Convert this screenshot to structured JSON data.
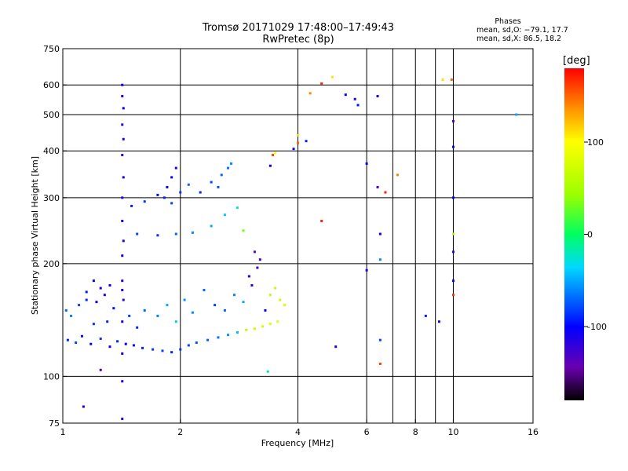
{
  "header": {
    "title": "Tromsø 20171029 17:48:00–17:49:43",
    "subtitle": "RwPretec (8p)"
  },
  "stats": {
    "heading": "Phases",
    "line_o": "mean, sd,O: −79.1, 17.7",
    "line_x": "mean, sd,X:  86.5, 18.2"
  },
  "colorbar": {
    "label": "[deg]",
    "ticks": [
      {
        "label": "100",
        "value": 100
      },
      {
        "label": "0",
        "value": 0
      },
      {
        "label": "-100",
        "value": -100
      }
    ],
    "range": [
      -180,
      180
    ]
  },
  "chart_data": {
    "type": "scatter",
    "title": "Tromsø 20171029 17:48:00–17:49:43",
    "subtitle": "RwPretec (8p)",
    "xlabel": "Frequency [MHz]",
    "ylabel": "Stationary phase Virtual Height [km]",
    "x_scale": "log",
    "y_scale": "log",
    "xlim": [
      1,
      16
    ],
    "ylim": [
      75,
      750
    ],
    "xticks": [
      {
        "label": "1",
        "value": 1
      },
      {
        "label": "2",
        "value": 2
      },
      {
        "label": "4",
        "value": 4
      },
      {
        "label": "6",
        "value": 6
      },
      {
        "label": "8",
        "value": 8
      },
      {
        "label": "10",
        "value": 10
      },
      {
        "label": "16",
        "value": 16
      }
    ],
    "yticks": [
      {
        "label": "75",
        "value": 75
      },
      {
        "label": "100",
        "value": 100
      },
      {
        "label": "200",
        "value": 200
      },
      {
        "label": "300",
        "value": 300
      },
      {
        "label": "400",
        "value": 400
      },
      {
        "label": "500",
        "value": 500
      },
      {
        "label": "600",
        "value": 600
      },
      {
        "label": "750",
        "value": 750
      }
    ],
    "vgrid": [
      2,
      4,
      6,
      7,
      8,
      9,
      10
    ],
    "hgrid": [
      100,
      200,
      300,
      400,
      500,
      600
    ],
    "grid": true,
    "color_encodes": "phase [deg]",
    "points": [
      [
        1.03,
        125,
        -90
      ],
      [
        1.08,
        123,
        -80
      ],
      [
        1.12,
        128,
        -95
      ],
      [
        1.18,
        122,
        -100
      ],
      [
        1.25,
        126,
        -85
      ],
      [
        1.32,
        120,
        -105
      ],
      [
        1.38,
        124,
        -90
      ],
      [
        1.45,
        122,
        -100
      ],
      [
        1.52,
        121,
        -95
      ],
      [
        1.6,
        119,
        -90
      ],
      [
        1.7,
        118,
        -85
      ],
      [
        1.8,
        117,
        -80
      ],
      [
        1.9,
        116,
        -90
      ],
      [
        2.0,
        118,
        -85
      ],
      [
        2.1,
        121,
        -80
      ],
      [
        2.2,
        123,
        -75
      ],
      [
        2.35,
        125,
        -70
      ],
      [
        2.5,
        127,
        -65
      ],
      [
        2.65,
        129,
        -55
      ],
      [
        2.8,
        131,
        -45
      ],
      [
        2.95,
        133,
        60
      ],
      [
        3.1,
        134,
        70
      ],
      [
        3.25,
        136,
        75
      ],
      [
        3.4,
        138,
        80
      ],
      [
        3.55,
        140,
        85
      ],
      [
        1.02,
        150,
        -70
      ],
      [
        1.05,
        145,
        -60
      ],
      [
        1.1,
        155,
        -80
      ],
      [
        1.15,
        160,
        -90
      ],
      [
        1.22,
        158,
        -100
      ],
      [
        1.28,
        165,
        -110
      ],
      [
        1.35,
        152,
        -95
      ],
      [
        1.42,
        170,
        -105
      ],
      [
        1.3,
        140,
        -90
      ],
      [
        1.2,
        138,
        -85
      ],
      [
        1.48,
        145,
        -80
      ],
      [
        1.55,
        135,
        -90
      ],
      [
        1.62,
        150,
        -70
      ],
      [
        1.75,
        145,
        -60
      ],
      [
        1.85,
        155,
        -50
      ],
      [
        1.95,
        140,
        -40
      ],
      [
        2.05,
        160,
        -55
      ],
      [
        2.15,
        148,
        -60
      ],
      [
        2.3,
        170,
        -70
      ],
      [
        2.45,
        155,
        -80
      ],
      [
        2.6,
        150,
        -70
      ],
      [
        2.75,
        165,
        -60
      ],
      [
        2.9,
        158,
        -50
      ],
      [
        3.05,
        175,
        -120
      ],
      [
        3.15,
        195,
        -130
      ],
      [
        3.1,
        215,
        -140
      ],
      [
        3.0,
        185,
        -110
      ],
      [
        3.2,
        205,
        -125
      ],
      [
        3.3,
        150,
        -100
      ],
      [
        3.4,
        165,
        60
      ],
      [
        3.5,
        172,
        65
      ],
      [
        3.6,
        160,
        70
      ],
      [
        3.7,
        155,
        75
      ],
      [
        1.2,
        180,
        -100
      ],
      [
        1.25,
        172,
        -110
      ],
      [
        1.15,
        168,
        -95
      ],
      [
        1.32,
        175,
        -105
      ],
      [
        1.5,
        285,
        -90
      ],
      [
        1.62,
        293,
        -85
      ],
      [
        1.75,
        305,
        -95
      ],
      [
        1.85,
        320,
        -100
      ],
      [
        1.9,
        340,
        -105
      ],
      [
        1.95,
        360,
        -110
      ],
      [
        1.82,
        300,
        -90
      ],
      [
        1.9,
        290,
        -80
      ],
      [
        2.0,
        310,
        -85
      ],
      [
        2.1,
        325,
        -70
      ],
      [
        2.25,
        310,
        -90
      ],
      [
        2.4,
        330,
        -80
      ],
      [
        2.55,
        345,
        -70
      ],
      [
        2.7,
        370,
        -60
      ],
      [
        2.65,
        360,
        -65
      ],
      [
        2.5,
        320,
        -75
      ],
      [
        1.55,
        240,
        -80
      ],
      [
        1.75,
        238,
        -85
      ],
      [
        1.95,
        240,
        -70
      ],
      [
        2.15,
        242,
        -60
      ],
      [
        2.4,
        252,
        -50
      ],
      [
        2.6,
        270,
        -40
      ],
      [
        2.8,
        282,
        -20
      ],
      [
        2.9,
        245,
        30
      ],
      [
        3.4,
        365,
        -100
      ],
      [
        3.5,
        395,
        100
      ],
      [
        3.9,
        405,
        -110
      ],
      [
        4.0,
        420,
        150
      ],
      [
        4.2,
        425,
        -90
      ],
      [
        4.0,
        440,
        110
      ],
      [
        4.3,
        570,
        140
      ],
      [
        4.6,
        605,
        170
      ],
      [
        4.9,
        630,
        110
      ],
      [
        5.3,
        565,
        -100
      ],
      [
        5.6,
        550,
        -110
      ],
      [
        5.7,
        530,
        -95
      ],
      [
        6.0,
        370,
        -100
      ],
      [
        6.4,
        560,
        -110
      ],
      [
        6.4,
        320,
        -130
      ],
      [
        6.7,
        310,
        170
      ],
      [
        7.2,
        345,
        140
      ],
      [
        6.5,
        240,
        -100
      ],
      [
        6.5,
        205,
        -60
      ],
      [
        6.0,
        192,
        -110
      ],
      [
        6.5,
        125,
        -80
      ],
      [
        6.5,
        108,
        160
      ],
      [
        5.0,
        120,
        -110
      ],
      [
        4.6,
        260,
        170
      ],
      [
        3.45,
        390,
        160
      ],
      [
        8.5,
        145,
        -90
      ],
      [
        9.2,
        140,
        -110
      ],
      [
        9.4,
        620,
        110
      ],
      [
        9.9,
        620,
        150
      ],
      [
        10.0,
        480,
        -130
      ],
      [
        10.0,
        410,
        -100
      ],
      [
        10.0,
        300,
        -100
      ],
      [
        10.0,
        240,
        60
      ],
      [
        10.0,
        215,
        -120
      ],
      [
        10.0,
        180,
        -100
      ],
      [
        10.0,
        165,
        165
      ],
      [
        14.5,
        500,
        -50
      ],
      [
        1.42,
        600,
        -100
      ],
      [
        1.42,
        560,
        -110
      ],
      [
        1.43,
        520,
        -100
      ],
      [
        1.42,
        470,
        -120
      ],
      [
        1.43,
        430,
        -110
      ],
      [
        1.42,
        390,
        -120
      ],
      [
        1.43,
        340,
        -110
      ],
      [
        1.42,
        300,
        -115
      ],
      [
        1.42,
        260,
        -100
      ],
      [
        1.43,
        230,
        -110
      ],
      [
        1.42,
        210,
        -100
      ],
      [
        1.42,
        180,
        -110
      ],
      [
        1.43,
        160,
        -120
      ],
      [
        1.42,
        140,
        -105
      ],
      [
        1.42,
        115,
        -100
      ],
      [
        1.42,
        97,
        -110
      ],
      [
        1.42,
        77,
        -120
      ],
      [
        1.25,
        104,
        -130
      ],
      [
        1.13,
        83,
        -110
      ],
      [
        3.35,
        103,
        -20
      ]
    ]
  }
}
